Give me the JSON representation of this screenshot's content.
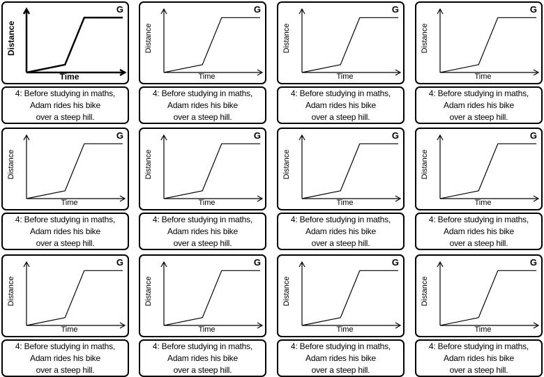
{
  "card": {
    "grade": "G",
    "x_axis_label": "Time",
    "y_axis_label": "Distance",
    "caption_lines": [
      "4: Before studying in maths,",
      "Adam rides his bike",
      "over a steep hill."
    ]
  },
  "chart_data": {
    "type": "line",
    "title": "",
    "xlabel": "Time",
    "ylabel": "Distance",
    "x": [
      0,
      4,
      6,
      10
    ],
    "y": [
      0,
      1,
      7,
      7
    ],
    "xlim": [
      0,
      10
    ],
    "ylim": [
      0,
      8
    ],
    "grid": false
  },
  "cards_count": 12
}
